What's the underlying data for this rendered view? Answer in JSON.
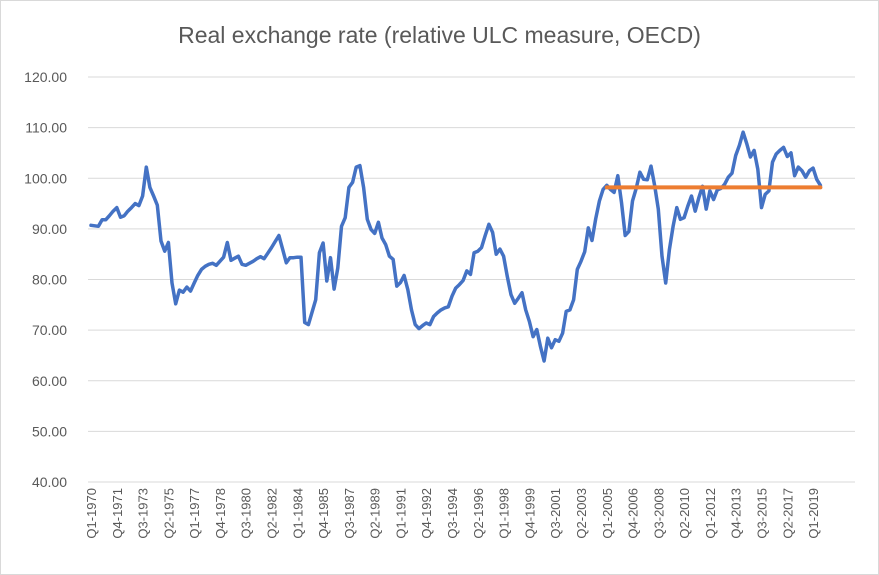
{
  "chart_data": {
    "type": "line",
    "title": "Real exchange rate (relative ULC measure, OECD)",
    "xlabel": "",
    "ylabel": "",
    "frequency": "quarterly",
    "ylim": [
      40,
      120
    ],
    "y_ticks": [
      "40.00",
      "50.00",
      "60.00",
      "70.00",
      "80.00",
      "90.00",
      "100.00",
      "110.00",
      "120.00"
    ],
    "x_tick_labels": [
      "Q1-1970",
      "Q4-1971",
      "Q3-1973",
      "Q2-1975",
      "Q1-1977",
      "Q4-1978",
      "Q3-1980",
      "Q2-1982",
      "Q1-1984",
      "Q4-1985",
      "Q3-1987",
      "Q2-1989",
      "Q1-1991",
      "Q4-1992",
      "Q3-1994",
      "Q2-1996",
      "Q1-1998",
      "Q4-1999",
      "Q3-2001",
      "Q2-2003",
      "Q1-2005",
      "Q4-2006",
      "Q3-2008",
      "Q2-2010",
      "Q1-2012",
      "Q4-2013",
      "Q3-2015",
      "Q2-2017",
      "Q1-2019"
    ],
    "grid": "horizontal",
    "legend": "none",
    "series": [
      {
        "color": "#4472c4",
        "start": "Q1-1970",
        "values": [
          90.7,
          90.6,
          90.5,
          91.8,
          91.8,
          92.6,
          93.5,
          94.2,
          92.3,
          92.6,
          93.5,
          94.2,
          95.0,
          94.6,
          96.5,
          102.2,
          98.2,
          96.5,
          94.7,
          87.6,
          85.6,
          87.3,
          79.3,
          75.2,
          77.9,
          77.5,
          78.5,
          77.7,
          79.3,
          80.8,
          82.0,
          82.6,
          83.0,
          83.2,
          82.8,
          83.6,
          84.4,
          87.3,
          83.8,
          84.2,
          84.6,
          83.0,
          82.8,
          83.2,
          83.6,
          84.1,
          84.5,
          84.1,
          85.2,
          86.3,
          87.5,
          88.7,
          86.0,
          83.3,
          84.3,
          84.3,
          84.4,
          84.4,
          71.5,
          71.1,
          73.5,
          76.0,
          85.3,
          87.2,
          79.7,
          84.3,
          78.1,
          82.3,
          90.5,
          92.2,
          98.2,
          99.2,
          102.2,
          102.5,
          98.2,
          91.9,
          89.9,
          89.1,
          91.3,
          88.2,
          86.9,
          84.6,
          84.0,
          78.7,
          79.4,
          80.8,
          78.0,
          74.0,
          71.1,
          70.3,
          70.9,
          71.4,
          71.1,
          72.7,
          73.4,
          74.0,
          74.4,
          74.6,
          76.7,
          78.3,
          79.0,
          79.8,
          81.7,
          81.0,
          85.3,
          85.6,
          86.3,
          88.7,
          90.9,
          89.3,
          85.0,
          86.0,
          84.6,
          80.6,
          77.0,
          75.3,
          76.3,
          77.4,
          74.0,
          71.7,
          68.7,
          70.1,
          66.8,
          63.9,
          68.4,
          66.5,
          68.1,
          67.8,
          69.4,
          73.7,
          74.0,
          76.0,
          82.0,
          83.6,
          85.5,
          90.2,
          87.7,
          92.0,
          95.5,
          97.8,
          98.6,
          97.8,
          97.2,
          100.5,
          95.2,
          88.7,
          89.5,
          95.5,
          98.0,
          101.2,
          99.8,
          99.7,
          102.4,
          98.5,
          93.9,
          84.6,
          79.3,
          85.9,
          90.5,
          94.2,
          91.9,
          92.2,
          94.5,
          96.5,
          93.5,
          96.2,
          98.4,
          93.9,
          97.5,
          95.8,
          97.7,
          98.0,
          98.8,
          100.2,
          101.0,
          104.5,
          106.5,
          109.1,
          106.8,
          104.2,
          105.5,
          101.8,
          94.2,
          96.8,
          97.5,
          103.2,
          104.8,
          105.5,
          106.1,
          104.3,
          105.0,
          100.5,
          102.2,
          101.5,
          100.2,
          101.5,
          102.0,
          99.8,
          98.6
        ]
      },
      {
        "color": "#ed7d31",
        "start": "Q1-2005",
        "end_same_as_series_1": true,
        "constant_value": 98.2
      }
    ]
  }
}
